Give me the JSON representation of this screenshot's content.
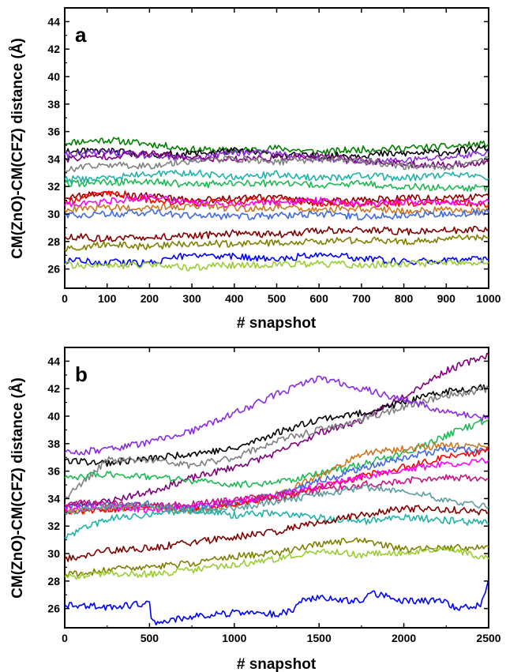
{
  "chart_data": [
    {
      "type": "line",
      "panel_label": "a",
      "xlabel": "# snapshot",
      "ylabel": "CM(ZnO)-CM(CFZ) distance (Å)",
      "xlim": [
        0,
        1000
      ],
      "ylim": [
        24.6,
        45.0
      ],
      "xticks": [
        0,
        100,
        200,
        300,
        400,
        500,
        600,
        700,
        800,
        900,
        1000
      ],
      "yticks": [
        26,
        28,
        30,
        32,
        34,
        36,
        38,
        40,
        42,
        44
      ],
      "grid": false,
      "series": [
        {
          "color": "#008000",
          "x": [
            0,
            100,
            200,
            300,
            400,
            500,
            600,
            700,
            800,
            900,
            1000
          ],
          "y": [
            35.2,
            35.4,
            35.1,
            34.7,
            34.6,
            34.8,
            34.5,
            34.7,
            34.8,
            34.9,
            35.1
          ]
        },
        {
          "color": "#000000",
          "x": [
            0,
            100,
            200,
            300,
            400,
            500,
            600,
            700,
            800,
            900,
            1000
          ],
          "y": [
            34.5,
            34.6,
            34.3,
            34.4,
            34.6,
            34.3,
            34.2,
            34.3,
            34.4,
            34.5,
            34.8
          ]
        },
        {
          "color": "#8a2be2",
          "x": [
            0,
            100,
            200,
            300,
            400,
            500,
            600,
            700,
            800,
            900,
            1000
          ],
          "y": [
            34.3,
            34.5,
            34.2,
            34.0,
            34.5,
            34.4,
            34.0,
            33.8,
            33.9,
            34.1,
            34.5
          ]
        },
        {
          "color": "#800080",
          "x": [
            0,
            100,
            200,
            300,
            400,
            500,
            600,
            700,
            800,
            900,
            1000
          ],
          "y": [
            34.0,
            34.2,
            34.4,
            34.1,
            34.0,
            34.1,
            34.2,
            33.9,
            33.6,
            33.6,
            33.7
          ]
        },
        {
          "color": "#808080",
          "x": [
            0,
            100,
            200,
            300,
            400,
            500,
            600,
            700,
            800,
            900,
            1000
          ],
          "y": [
            33.2,
            33.6,
            33.5,
            33.9,
            34.0,
            33.8,
            34.0,
            33.9,
            33.5,
            33.4,
            34.1
          ]
        },
        {
          "color": "#20b2aa",
          "x": [
            0,
            100,
            200,
            300,
            400,
            500,
            600,
            700,
            800,
            900,
            1000
          ],
          "y": [
            32.5,
            32.6,
            32.9,
            33.0,
            32.7,
            32.9,
            32.6,
            32.8,
            32.6,
            32.9,
            32.6
          ]
        },
        {
          "color": "#1db954",
          "x": [
            0,
            100,
            200,
            300,
            400,
            500,
            600,
            700,
            800,
            900,
            1000
          ],
          "y": [
            32.2,
            32.3,
            32.4,
            32.1,
            32.3,
            32.2,
            32.1,
            32.2,
            32.0,
            31.9,
            31.9
          ]
        },
        {
          "color": "#8b0000",
          "x": [
            0,
            100,
            200,
            300,
            400,
            500,
            600,
            700,
            800,
            900,
            1000
          ],
          "y": [
            31.2,
            31.5,
            31.3,
            31.0,
            31.1,
            31.2,
            30.9,
            31.0,
            31.2,
            31.1,
            31.3
          ]
        },
        {
          "color": "#ff0000",
          "x": [
            0,
            100,
            200,
            300,
            400,
            500,
            600,
            700,
            800,
            900,
            1000
          ],
          "y": [
            30.9,
            31.6,
            31.0,
            30.8,
            30.9,
            31.0,
            30.8,
            30.7,
            30.8,
            30.9,
            30.7
          ]
        },
        {
          "color": "#ff00ff",
          "x": [
            0,
            100,
            200,
            300,
            400,
            500,
            600,
            700,
            800,
            900,
            1000
          ],
          "y": [
            30.6,
            30.9,
            31.2,
            30.8,
            30.7,
            30.8,
            31.0,
            30.7,
            30.9,
            30.8,
            30.9
          ]
        },
        {
          "color": "#cc7722",
          "x": [
            0,
            100,
            200,
            300,
            400,
            500,
            600,
            700,
            800,
            900,
            1000
          ],
          "y": [
            30.3,
            30.5,
            30.4,
            30.6,
            30.4,
            30.5,
            30.3,
            30.4,
            30.2,
            30.3,
            30.2
          ]
        },
        {
          "color": "#4169e1",
          "x": [
            0,
            100,
            200,
            300,
            400,
            500,
            600,
            700,
            800,
            900,
            1000
          ],
          "y": [
            29.9,
            30.0,
            30.1,
            29.9,
            29.8,
            29.9,
            30.0,
            29.8,
            29.9,
            30.0,
            30.1
          ]
        },
        {
          "color": "#800000",
          "x": [
            0,
            100,
            200,
            300,
            400,
            500,
            600,
            700,
            800,
            900,
            1000
          ],
          "y": [
            28.4,
            28.2,
            28.3,
            28.4,
            28.6,
            28.5,
            28.8,
            28.9,
            28.7,
            28.8,
            28.9
          ]
        },
        {
          "color": "#808000",
          "x": [
            0,
            100,
            200,
            300,
            400,
            500,
            600,
            700,
            800,
            900,
            1000
          ],
          "y": [
            27.4,
            27.8,
            27.6,
            27.9,
            27.8,
            27.9,
            28.0,
            28.1,
            28.0,
            28.2,
            28.3
          ]
        },
        {
          "color": "#0000ff",
          "x": [
            0,
            100,
            200,
            300,
            400,
            500,
            600,
            700,
            800,
            900,
            1000
          ],
          "y": [
            26.6,
            26.5,
            26.4,
            27.1,
            26.9,
            26.7,
            27.1,
            26.8,
            26.5,
            26.6,
            26.7
          ]
        },
        {
          "color": "#9acd32",
          "x": [
            0,
            100,
            200,
            300,
            400,
            500,
            600,
            700,
            800,
            900,
            1000
          ],
          "y": [
            26.3,
            26.2,
            26.3,
            26.1,
            26.3,
            26.3,
            26.4,
            26.3,
            26.4,
            26.4,
            26.5
          ]
        }
      ]
    },
    {
      "type": "line",
      "panel_label": "b",
      "xlabel": "# snapshot",
      "ylabel": "CM(ZnO)-CM(CFZ) distance (Å)",
      "xlim": [
        0,
        2500
      ],
      "ylim": [
        24.6,
        45.0
      ],
      "xticks": [
        0,
        500,
        1000,
        1500,
        2000,
        2500
      ],
      "yticks": [
        26,
        28,
        30,
        32,
        34,
        36,
        38,
        40,
        42,
        44
      ],
      "grid": false,
      "series": [
        {
          "color": "#800080",
          "x": [
            0,
            250,
            500,
            750,
            1000,
            1250,
            1500,
            1750,
            2000,
            2250,
            2500
          ],
          "y": [
            33.5,
            33.8,
            34.5,
            35.5,
            36.3,
            37.3,
            38.8,
            39.7,
            41.5,
            43.3,
            44.5
          ]
        },
        {
          "color": "#000000",
          "x": [
            0,
            250,
            500,
            750,
            1000,
            1250,
            1500,
            1750,
            2000,
            2250,
            2500
          ],
          "y": [
            36.8,
            36.6,
            36.9,
            37.3,
            37.6,
            38.8,
            39.8,
            40.2,
            41.0,
            41.8,
            42.2
          ]
        },
        {
          "color": "#808080",
          "x": [
            0,
            250,
            500,
            750,
            1000,
            1250,
            1500,
            1750,
            2000,
            2250,
            2500
          ],
          "y": [
            34.0,
            36.8,
            36.8,
            36.4,
            37.0,
            38.2,
            39.0,
            39.7,
            40.7,
            41.5,
            42.0
          ]
        },
        {
          "color": "#8a2be2",
          "x": [
            0,
            250,
            500,
            750,
            1000,
            1250,
            1500,
            1750,
            2000,
            2250,
            2500
          ],
          "y": [
            37.3,
            37.6,
            38.1,
            38.9,
            40.2,
            41.6,
            42.8,
            42.0,
            41.2,
            40.3,
            39.8
          ]
        },
        {
          "color": "#1db954",
          "x": [
            0,
            250,
            500,
            750,
            1000,
            1250,
            1500,
            1750,
            2000,
            2250,
            2500
          ],
          "y": [
            35.5,
            35.8,
            35.6,
            35.3,
            35.0,
            35.2,
            35.8,
            36.5,
            37.3,
            38.6,
            39.8
          ]
        },
        {
          "color": "#cc7722",
          "x": [
            0,
            250,
            500,
            750,
            1000,
            1250,
            1500,
            1750,
            2000,
            2250,
            2500
          ],
          "y": [
            33.0,
            33.3,
            33.4,
            33.1,
            33.6,
            34.3,
            35.6,
            37.3,
            37.6,
            37.9,
            37.8
          ]
        },
        {
          "color": "#4169e1",
          "x": [
            0,
            250,
            500,
            750,
            1000,
            1250,
            1500,
            1750,
            2000,
            2250,
            2500
          ],
          "y": [
            33.4,
            33.5,
            33.6,
            33.3,
            33.7,
            34.2,
            35.3,
            36.2,
            37.0,
            37.6,
            37.4
          ]
        },
        {
          "color": "#ff0000",
          "x": [
            0,
            250,
            500,
            750,
            1000,
            1250,
            1500,
            1750,
            2000,
            2250,
            2500
          ],
          "y": [
            33.0,
            33.2,
            33.5,
            33.2,
            33.6,
            34.0,
            34.8,
            35.6,
            36.3,
            37.0,
            37.5
          ]
        },
        {
          "color": "#ff00ff",
          "x": [
            0,
            250,
            500,
            750,
            1000,
            1250,
            1500,
            1750,
            2000,
            2250,
            2500
          ],
          "y": [
            33.3,
            33.4,
            33.2,
            33.4,
            33.8,
            34.2,
            34.9,
            35.6,
            36.1,
            36.5,
            36.8
          ]
        },
        {
          "color": "#c71585",
          "x": [
            0,
            250,
            500,
            750,
            1000,
            1250,
            1500,
            1750,
            2000,
            2250,
            2500
          ],
          "y": [
            33.6,
            33.7,
            33.5,
            33.6,
            33.9,
            34.2,
            34.6,
            35.0,
            35.3,
            35.6,
            35.4
          ]
        },
        {
          "color": "#5f9ea0",
          "x": [
            0,
            250,
            500,
            750,
            1000,
            1250,
            1500,
            1750,
            2000,
            2250,
            2500
          ],
          "y": [
            33.0,
            33.4,
            33.5,
            33.1,
            33.3,
            33.8,
            34.3,
            34.8,
            34.6,
            33.9,
            33.4
          ]
        },
        {
          "color": "#20b2aa",
          "x": [
            0,
            250,
            500,
            750,
            1000,
            1250,
            1500,
            1750,
            2000,
            2250,
            2500
          ],
          "y": [
            31.2,
            32.5,
            32.9,
            33.2,
            32.8,
            33.0,
            32.6,
            32.3,
            32.7,
            32.4,
            32.2
          ]
        },
        {
          "color": "#800000",
          "x": [
            0,
            250,
            500,
            750,
            1000,
            1250,
            1500,
            1750,
            2000,
            2250,
            2500
          ],
          "y": [
            29.6,
            30.2,
            30.4,
            30.8,
            31.2,
            31.6,
            32.3,
            32.8,
            33.3,
            33.2,
            33.0
          ]
        },
        {
          "color": "#808000",
          "x": [
            0,
            250,
            500,
            750,
            1000,
            1250,
            1500,
            1750,
            2000,
            2250,
            2500
          ],
          "y": [
            28.4,
            28.8,
            29.0,
            29.3,
            29.8,
            30.0,
            30.7,
            31.0,
            30.3,
            30.4,
            30.5
          ]
        },
        {
          "color": "#9acd32",
          "x": [
            0,
            250,
            500,
            750,
            1000,
            1250,
            1500,
            1750,
            2000,
            2250,
            2500
          ],
          "y": [
            28.3,
            28.6,
            28.5,
            28.8,
            29.2,
            29.6,
            30.2,
            29.9,
            30.1,
            30.4,
            29.6
          ]
        },
        {
          "color": "#0000ff",
          "x": [
            0,
            250,
            450,
            500,
            510,
            750,
            1000,
            1250,
            1350,
            1400,
            1500,
            1600,
            1750,
            1800,
            2000,
            2250,
            2300,
            2450,
            2500
          ],
          "y": [
            26.3,
            26.1,
            26.3,
            26.5,
            25.0,
            25.4,
            25.7,
            25.6,
            25.9,
            26.6,
            26.8,
            26.7,
            26.5,
            27.2,
            26.5,
            26.6,
            26.0,
            26.2,
            28.1
          ]
        }
      ]
    }
  ]
}
